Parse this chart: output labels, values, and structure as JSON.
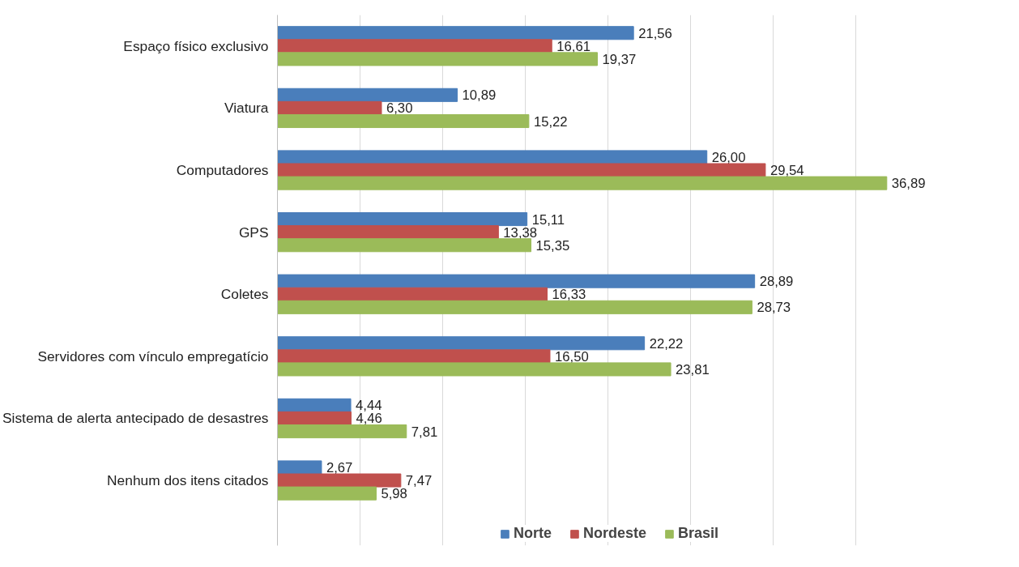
{
  "chart_data": {
    "type": "bar",
    "orientation": "horizontal",
    "categories": [
      "Espaço físico exclusivo",
      "Viatura",
      "Computadores",
      "GPS",
      "Coletes",
      "Servidores com vínculo empregatício",
      "Sistema de alerta antecipado de desastres",
      "Nenhum dos itens citados"
    ],
    "series": [
      {
        "name": "Norte",
        "color": "#4a7ebb",
        "values": [
          21.56,
          10.89,
          26.0,
          15.11,
          28.89,
          22.22,
          4.44,
          2.67
        ],
        "value_labels": [
          "21,56",
          "10,89",
          "26,00",
          "15,11",
          "28,89",
          "22,22",
          "4,44",
          "2,67"
        ]
      },
      {
        "name": "Nordeste",
        "color": "#c0504d",
        "values": [
          16.61,
          6.3,
          29.54,
          13.38,
          16.33,
          16.5,
          4.46,
          7.47
        ],
        "value_labels": [
          "16,61",
          "6,30",
          "29,54",
          "13,38",
          "16,33",
          "16,50",
          "4,46",
          "7,47"
        ]
      },
      {
        "name": "Brasil",
        "color": "#9bbb59",
        "values": [
          19.37,
          15.22,
          36.89,
          15.35,
          28.73,
          23.81,
          7.81,
          5.98
        ],
        "value_labels": [
          "19,37",
          "15,22",
          "36,89",
          "15,35",
          "28,73",
          "23,81",
          "7,81",
          "5,98"
        ]
      }
    ],
    "xticks": [
      {
        "value": 0,
        "label": null
      },
      {
        "value": 5,
        "label": null
      },
      {
        "value": 10,
        "label": null
      },
      {
        "value": 15,
        "label": null
      },
      {
        "value": 20,
        "label": null
      },
      {
        "value": 25,
        "label": null
      },
      {
        "value": 30,
        "label": null
      },
      {
        "value": 35,
        "label": null
      }
    ],
    "grid": "x",
    "legend": "bottom",
    "tick_labels": "y"
  }
}
